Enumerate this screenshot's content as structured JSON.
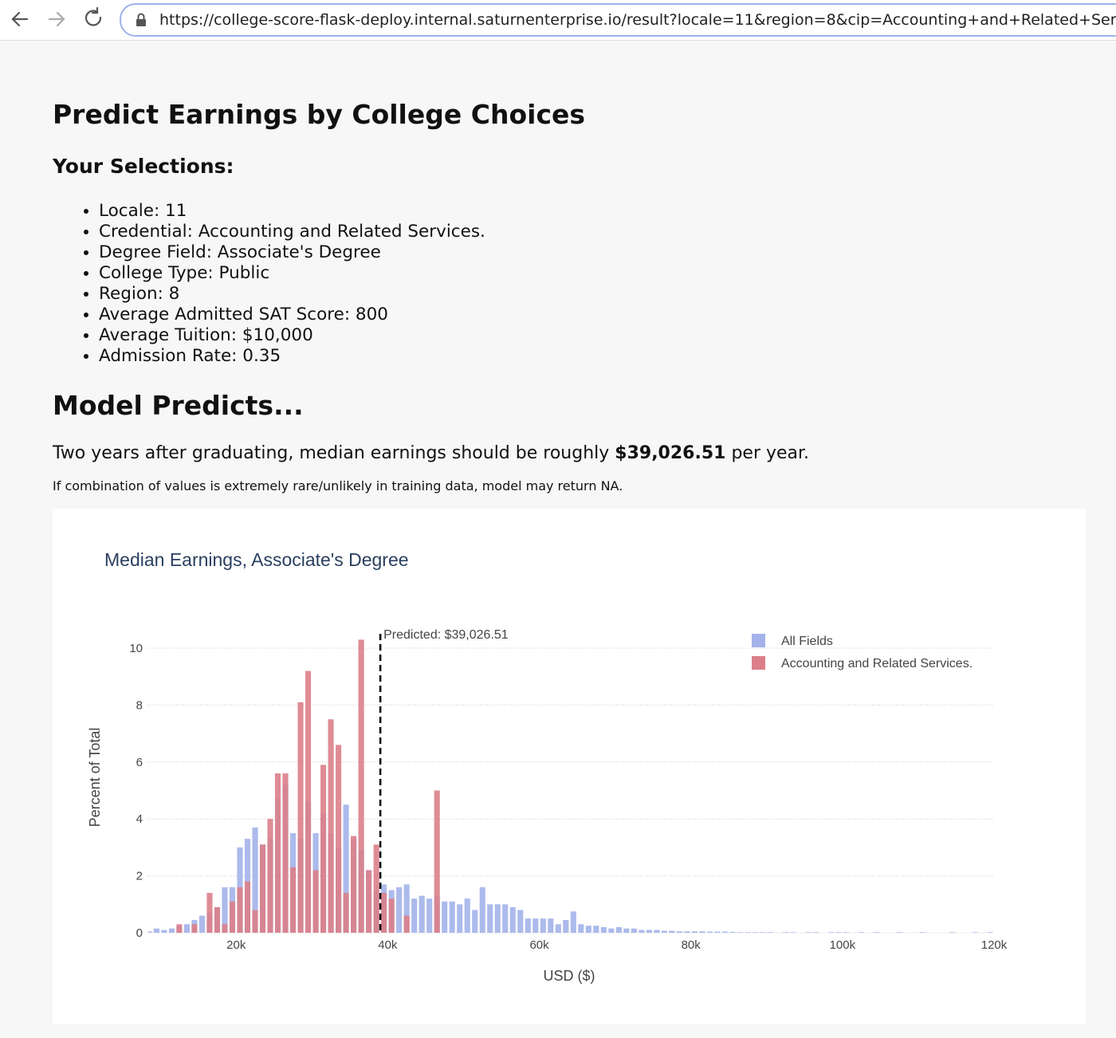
{
  "browser": {
    "url": "https://college-score-flask-deploy.internal.saturnenterprise.io/result?locale=11&region=8&cip=Accounting+and+Related+Serv"
  },
  "header": {
    "title": "Predict Earnings by College Choices"
  },
  "selections": {
    "heading": "Your Selections:",
    "items": [
      "Locale: 11",
      "Credential: Accounting and Related Services.",
      "Degree Field: Associate's Degree",
      "College Type: Public",
      "Region: 8",
      "Average Admitted SAT Score: 800",
      "Average Tuition: $10,000",
      "Admission Rate: 0.35"
    ]
  },
  "prediction": {
    "heading": "Model Predicts...",
    "sentence_start": "Two years after graduating, median earnings should be roughly ",
    "amount": "$39,026.51",
    "sentence_end": " per year.",
    "note": "If combination of values is extremely rare/unlikely in training data, model may return NA."
  },
  "chart_data": {
    "type": "histogram",
    "title": "Median Earnings, Associate's Degree",
    "x_label": "USD ($)",
    "y_label": "Percent of Total",
    "xlim": [
      8300,
      120000
    ],
    "ylim": [
      0,
      10.6
    ],
    "xticks": [
      {
        "value": 20000,
        "label": "20k"
      },
      {
        "value": 40000,
        "label": "40k"
      },
      {
        "value": 60000,
        "label": "60k"
      },
      {
        "value": 80000,
        "label": "80k"
      },
      {
        "value": 100000,
        "label": "100k"
      },
      {
        "value": 120000,
        "label": "120k"
      }
    ],
    "yticks": [
      0,
      2,
      4,
      6,
      8,
      10
    ],
    "grid": true,
    "legend": "top-right",
    "predicted": 39026.51,
    "predicted_label": "Predicted: $39,026.51",
    "bins": [
      8000,
      9000,
      10000,
      11000,
      12000,
      13000,
      14000,
      15000,
      16000,
      17000,
      18000,
      19000,
      20000,
      21000,
      22000,
      23000,
      24000,
      25000,
      26000,
      27000,
      28000,
      29000,
      30000,
      31000,
      32000,
      33000,
      34000,
      35000,
      36000,
      37000,
      38000,
      39000,
      40000,
      41000,
      42000,
      43000,
      44000,
      45000,
      46000,
      47000,
      48000,
      49000,
      50000,
      51000,
      52000,
      53000,
      54000,
      55000,
      56000,
      57000,
      58000,
      59000,
      60000,
      61000,
      62000,
      63000,
      64000,
      65000,
      66000,
      67000,
      68000,
      69000,
      70000,
      71000,
      72000,
      73000,
      74000,
      75000,
      76000,
      77000,
      78000,
      79000,
      80000,
      81000,
      82000,
      83000,
      84000,
      85000,
      86000,
      87000,
      88000,
      89000,
      90000,
      91000,
      92000,
      93000,
      94000,
      95000,
      96000,
      97000,
      98000,
      99000,
      100000,
      101000,
      102000,
      103000,
      104000,
      105000,
      106000,
      107000,
      108000,
      109000,
      110000,
      111000,
      112000,
      113000,
      114000,
      115000,
      116000,
      117000,
      118000,
      119000,
      120000
    ],
    "series": [
      {
        "name": "All Fields",
        "color": "#a3b2ea",
        "values": [
          0.05,
          0.15,
          0.1,
          0.15,
          0.25,
          0.3,
          0.45,
          0.6,
          0.7,
          0.9,
          1.6,
          1.6,
          3.0,
          3.3,
          3.7,
          3.1,
          3.3,
          4.7,
          5.2,
          3.5,
          3.3,
          4.6,
          3.5,
          4.2,
          3.5,
          3.0,
          4.5,
          3.3,
          2.9,
          2.2,
          1.5,
          1.7,
          1.5,
          1.6,
          1.7,
          1.2,
          1.3,
          1.2,
          1.3,
          1.1,
          1.1,
          1.0,
          1.2,
          0.8,
          1.6,
          1.0,
          1.0,
          1.0,
          0.9,
          0.8,
          0.5,
          0.5,
          0.5,
          0.5,
          0.3,
          0.45,
          0.75,
          0.3,
          0.25,
          0.25,
          0.2,
          0.15,
          0.2,
          0.15,
          0.15,
          0.1,
          0.1,
          0.1,
          0.07,
          0.07,
          0.05,
          0.05,
          0.05,
          0.05,
          0.04,
          0.04,
          0.04,
          0.03,
          0.02,
          0.02,
          0.02,
          0.02,
          0.02,
          0,
          0.02,
          0.02,
          0,
          0.02,
          0.02,
          0,
          0.02,
          0.02,
          0.02,
          0,
          0.02,
          0,
          0.02,
          0,
          0,
          0.02,
          0,
          0,
          0.02,
          0,
          0,
          0,
          0.02,
          0,
          0,
          0.02,
          0,
          0.02
        ]
      },
      {
        "name": "Accounting and Related Services.",
        "color": "#dc7f89",
        "values": [
          0,
          0,
          0,
          0,
          0.3,
          0,
          0.3,
          0,
          1.4,
          0.9,
          0.3,
          1.1,
          1.6,
          1.8,
          0.8,
          3.1,
          4.0,
          5.6,
          5.6,
          2.3,
          8.1,
          9.2,
          2.2,
          5.9,
          7.5,
          6.6,
          1.4,
          3.4,
          10.3,
          2.2,
          3.1,
          1.4,
          1.2,
          0,
          0.6,
          0,
          0,
          0,
          5.0,
          0,
          0,
          0,
          0,
          0,
          0,
          0,
          0,
          0,
          0,
          0,
          0,
          0,
          0,
          0,
          0,
          0,
          0,
          0,
          0,
          0,
          0,
          0,
          0,
          0,
          0,
          0,
          0,
          0,
          0,
          0,
          0,
          0,
          0,
          0,
          0,
          0,
          0,
          0,
          0,
          0,
          0,
          0,
          0,
          0,
          0,
          0,
          0,
          0,
          0,
          0,
          0,
          0,
          0,
          0,
          0,
          0,
          0,
          0,
          0,
          0,
          0,
          0,
          0,
          0,
          0,
          0,
          0,
          0,
          0,
          0,
          0,
          0
        ]
      }
    ]
  }
}
